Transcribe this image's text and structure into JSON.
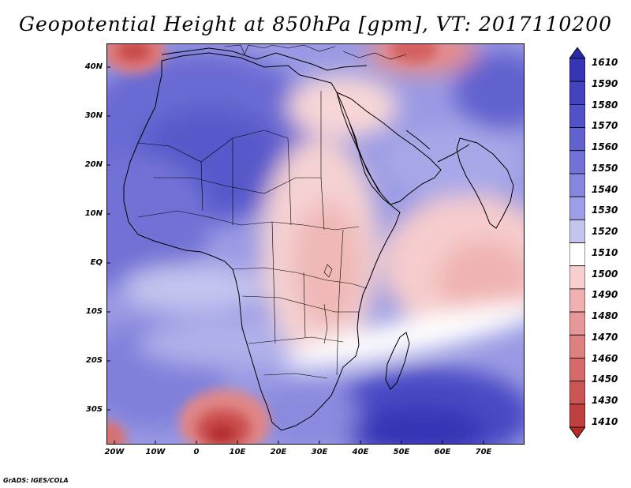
{
  "title": "Geopotential Height at 850hPa [gpm], VT: 2017110200",
  "footer": "GrADS: IGES/COLA",
  "lat_labels": [
    "40N",
    "30N",
    "20N",
    "10N",
    "EQ",
    "10S",
    "20S",
    "30S"
  ],
  "lon_labels": [
    "20W",
    "10W",
    "0",
    "10E",
    "20E",
    "30E",
    "40E",
    "50E",
    "60E",
    "70E"
  ],
  "colorbar": {
    "levels": [
      "1610",
      "1590",
      "1580",
      "1570",
      "1560",
      "1550",
      "1540",
      "1530",
      "1520",
      "1510",
      "1500",
      "1490",
      "1480",
      "1470",
      "1460",
      "1450",
      "1430",
      "1410"
    ],
    "colors": [
      "#2a2aa8",
      "#3535b5",
      "#4343bf",
      "#5252c8",
      "#6262cf",
      "#7272d6",
      "#8686de",
      "#9e9ee6",
      "#c4c4ef",
      "#ffffff",
      "#f7cfcf",
      "#f0b0b0",
      "#e69898",
      "#dd8080",
      "#d46a6a",
      "#ca5555",
      "#bf4040",
      "#b22a2a"
    ]
  }
}
